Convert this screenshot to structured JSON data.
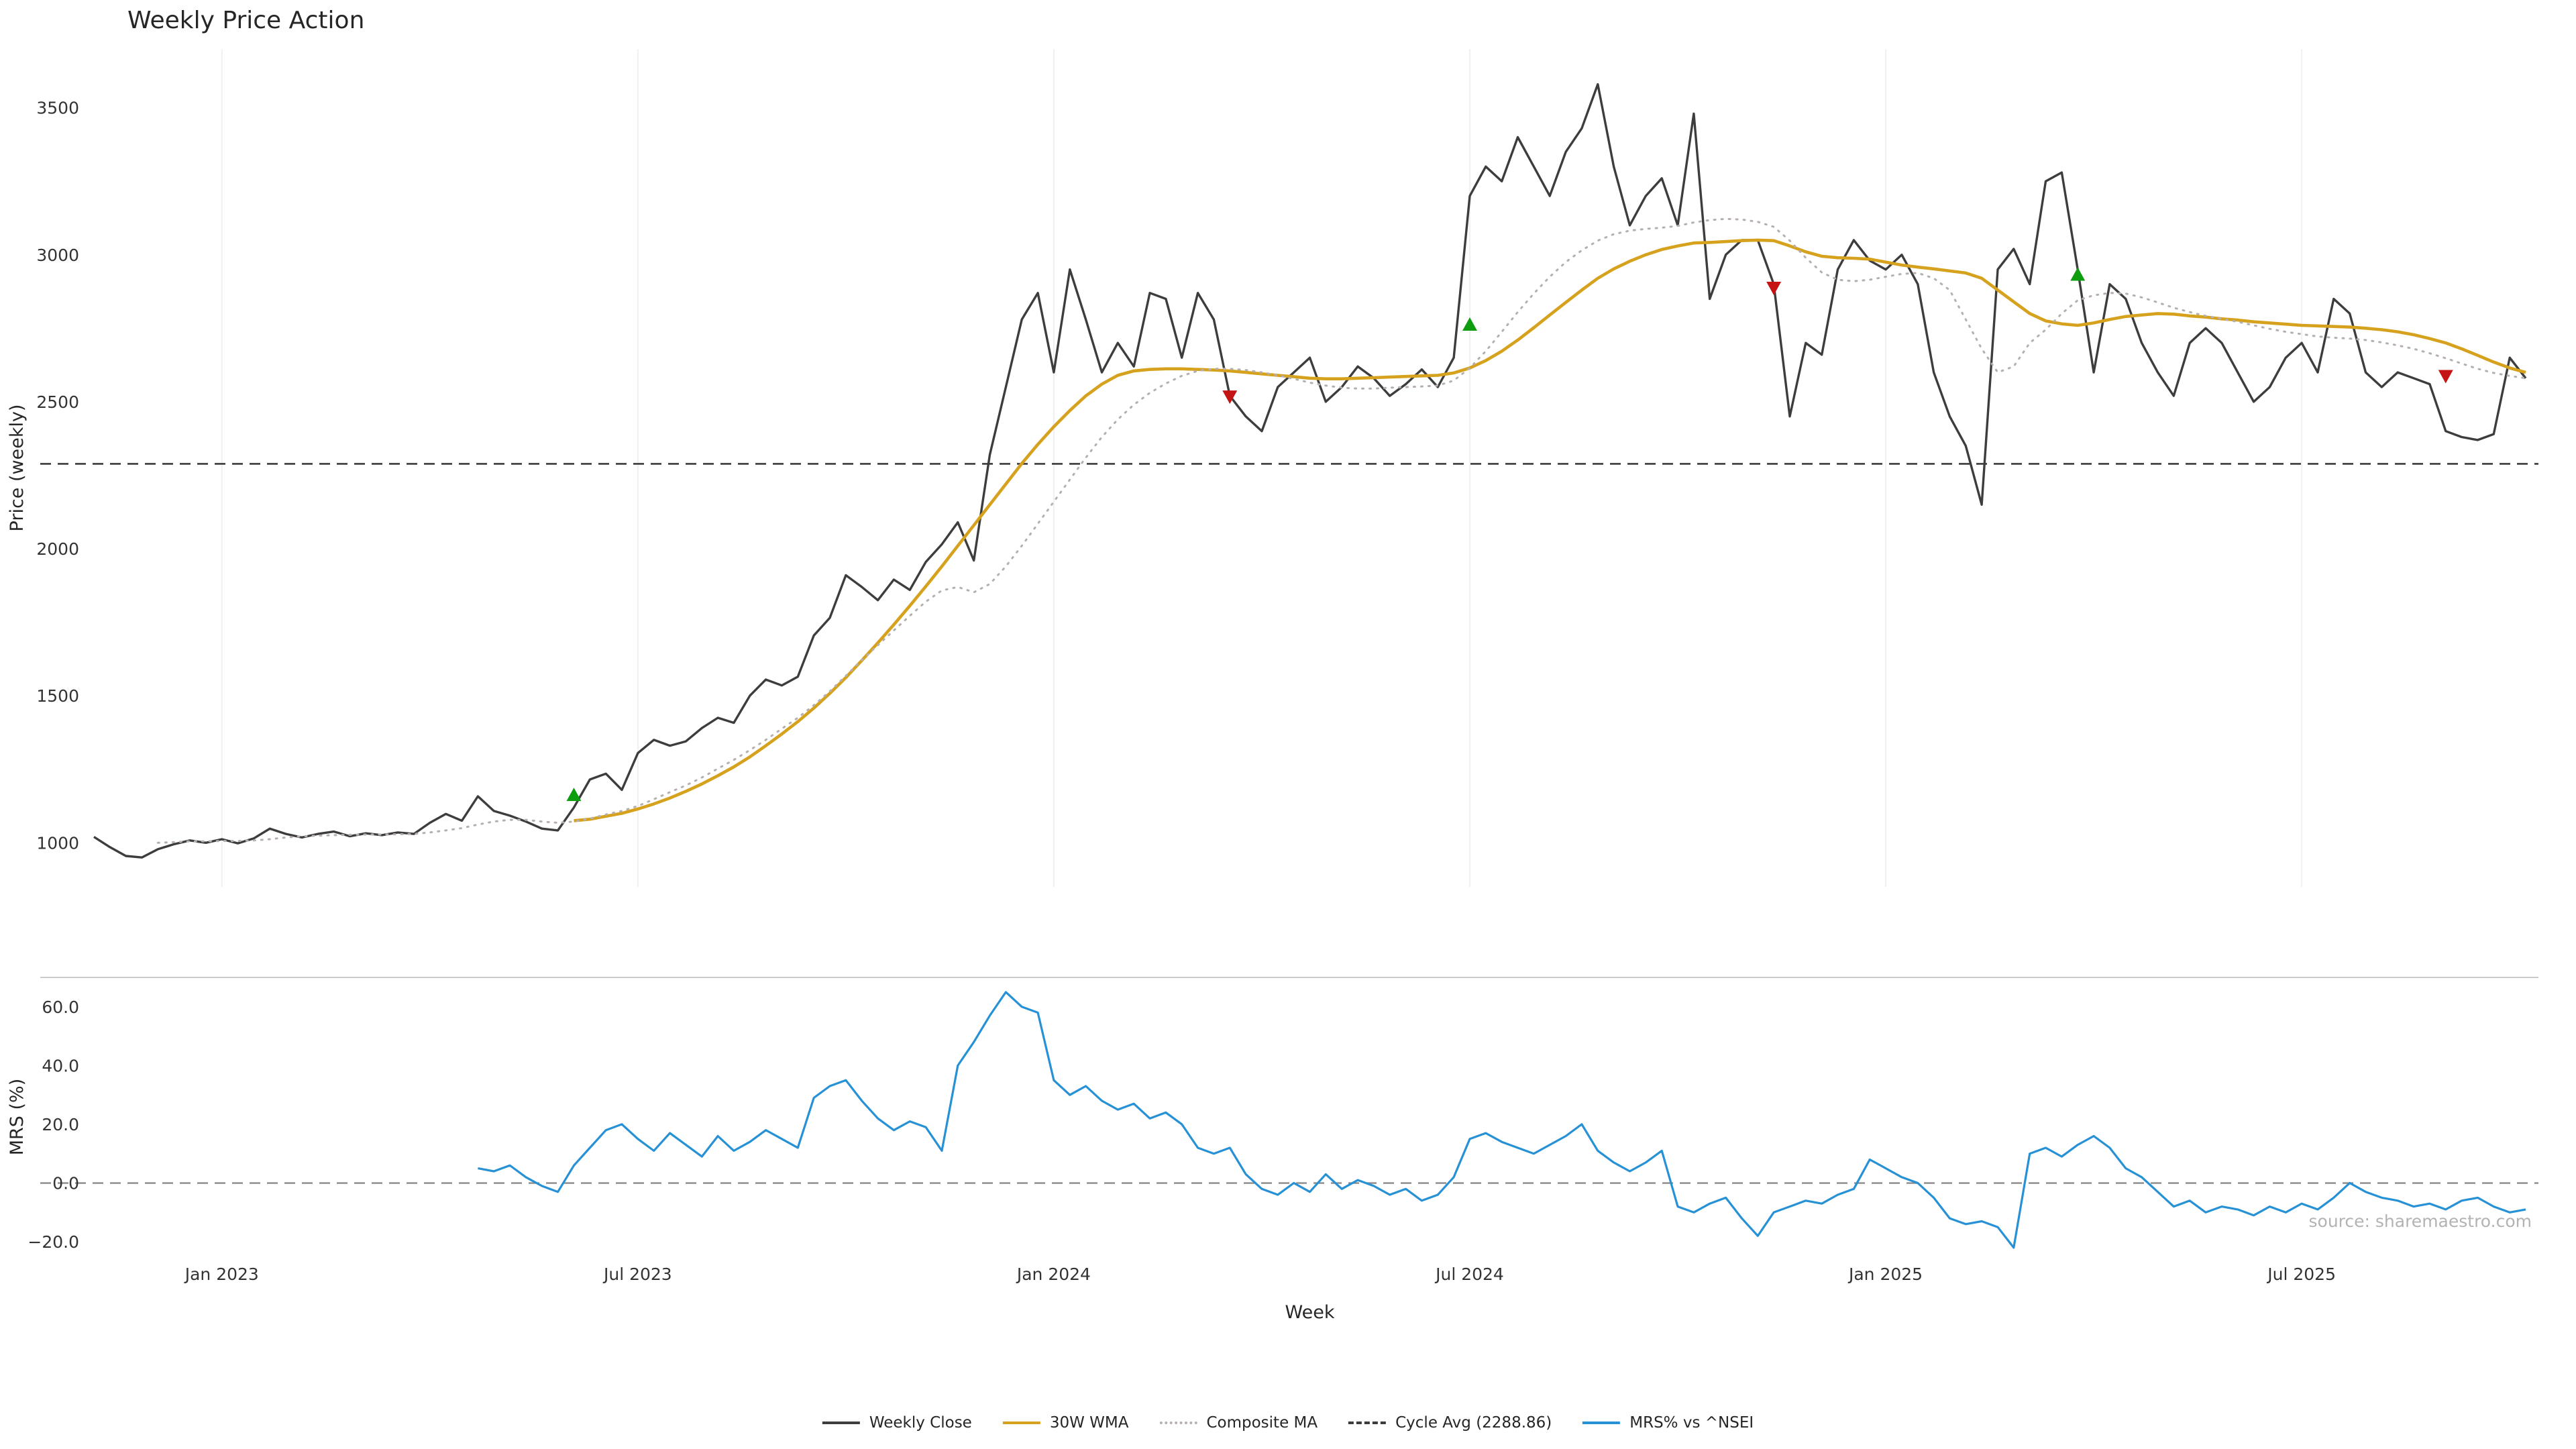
{
  "title": "Weekly Price Action",
  "watermark": "source: sharemaestro.com",
  "legend": [
    {
      "label": "Weekly Close",
      "color": "#3d3d3d",
      "style": "solid"
    },
    {
      "label": "30W WMA",
      "color": "#d6a21e",
      "style": "solid"
    },
    {
      "label": "Composite MA",
      "color": "#b5b0ae",
      "style": "dotted"
    },
    {
      "label": "Cycle Avg (2288.86)",
      "color": "#3c3c3c",
      "style": "dashed"
    },
    {
      "label": "MRS% vs ^NSEI",
      "color": "#2791d6",
      "style": "solid"
    }
  ],
  "chart_data": {
    "type": "line",
    "x_unit": "weekly (Nov 2022 - Oct 2025)",
    "x_label": "Week",
    "n_weeks": 153,
    "x_ticks": [
      {
        "index": 8,
        "label": "Jan 2023"
      },
      {
        "index": 34,
        "label": "Jul 2023"
      },
      {
        "index": 60,
        "label": "Jan 2024"
      },
      {
        "index": 86,
        "label": "Jul 2024"
      },
      {
        "index": 112,
        "label": "Jan 2025"
      },
      {
        "index": 138,
        "label": "Jul 2025"
      }
    ],
    "panels": [
      {
        "name": "price",
        "ylabel": "Price (weekly)",
        "ylim": [
          850,
          3700
        ],
        "y_ticks": [
          {
            "value": 3500,
            "label": "3500"
          },
          {
            "value": 3000,
            "label": "3000"
          },
          {
            "value": 2500,
            "label": "2500"
          },
          {
            "value": 2000,
            "label": "2000"
          },
          {
            "value": 1500,
            "label": "1500"
          },
          {
            "value": 1000,
            "label": "1000"
          }
        ],
        "hlines": [
          {
            "name": "cycle-avg",
            "value": 2288.86,
            "color": "#3c3c3c",
            "style": "dashed",
            "lw": 2.6
          }
        ],
        "series": [
          {
            "name": "Weekly Close",
            "color": "#3d3d3d",
            "style": "solid",
            "lw": 3.4,
            "start": 0,
            "values": [
              1020,
              985,
              955,
              950,
              978,
              995,
              1008,
              1000,
              1012,
              998,
              1015,
              1048,
              1030,
              1018,
              1030,
              1038,
              1022,
              1032,
              1026,
              1035,
              1030,
              1068,
              1098,
              1075,
              1158,
              1108,
              1092,
              1072,
              1048,
              1042,
              1120,
              1215,
              1235,
              1180,
              1305,
              1350,
              1330,
              1345,
              1390,
              1425,
              1408,
              1500,
              1555,
              1535,
              1565,
              1705,
              1765,
              1910,
              1870,
              1825,
              1895,
              1860,
              1955,
              2015,
              2090,
              1960,
              2320,
              2550,
              2780,
              2870,
              2600,
              2950,
              2780,
              2600,
              2700,
              2620,
              2870,
              2850,
              2650,
              2870,
              2780,
              2520,
              2450,
              2400,
              2550,
              2600,
              2650,
              2500,
              2550,
              2620,
              2580,
              2520,
              2560,
              2610,
              2550,
              2650,
              3200,
              3300,
              3250,
              3400,
              3300,
              3200,
              3350,
              3430,
              3580,
              3300,
              3100,
              3200,
              3260,
              3100,
              3480,
              2850,
              3000,
              3050,
              3050,
              2900,
              2450,
              2700,
              2660,
              2950,
              3050,
              2980,
              2950,
              3000,
              2900,
              2600,
              2450,
              2350,
              2150,
              2950,
              3020,
              2900,
              3250,
              3280,
              2950,
              2600,
              2900,
              2850,
              2700,
              2600,
              2520,
              2700,
              2750,
              2700,
              2600,
              2500,
              2550,
              2650,
              2700,
              2600,
              2850,
              2800,
              2600,
              2550,
              2600,
              2580,
              2560,
              2400,
              2380,
              2370,
              2390,
              2650,
              2580
            ]
          },
          {
            "name": "30W WMA",
            "color": "#d6a21e",
            "style": "solid",
            "lw": 4.6,
            "start": 30,
            "values": [
              1075,
              1080,
              1090,
              1100,
              1115,
              1132,
              1152,
              1175,
              1200,
              1228,
              1258,
              1292,
              1330,
              1370,
              1412,
              1458,
              1508,
              1562,
              1620,
              1680,
              1742,
              1806,
              1872,
              1940,
              2010,
              2080,
              2150,
              2220,
              2290,
              2355,
              2415,
              2470,
              2520,
              2560,
              2590,
              2605,
              2610,
              2612,
              2612,
              2610,
              2608,
              2605,
              2600,
              2595,
              2590,
              2585,
              2580,
              2578,
              2578,
              2580,
              2582,
              2584,
              2586,
              2588,
              2590,
              2598,
              2615,
              2640,
              2672,
              2710,
              2752,
              2795,
              2838,
              2880,
              2920,
              2952,
              2978,
              3000,
              3018,
              3030,
              3040,
              3042,
              3045,
              3048,
              3050,
              3048,
              3030,
              3010,
              2995,
              2990,
              2988,
              2985,
              2975,
              2965,
              2958,
              2952,
              2945,
              2938,
              2920,
              2880,
              2840,
              2800,
              2775,
              2765,
              2760,
              2768,
              2780,
              2790,
              2795,
              2800,
              2798,
              2792,
              2788,
              2782,
              2778,
              2772,
              2768,
              2764,
              2760,
              2758,
              2756,
              2754,
              2750,
              2745,
              2738,
              2728,
              2715,
              2700,
              2680,
              2658,
              2635,
              2615,
              2600
            ]
          },
          {
            "name": "Composite MA",
            "color": "#b5b0ae",
            "style": "dotted",
            "lw": 3.0,
            "start": 4,
            "values": [
              1000,
              1002,
              1005,
              1005,
              1006,
              1006,
              1008,
              1012,
              1018,
              1022,
              1024,
              1026,
              1027,
              1028,
              1028,
              1029,
              1030,
              1035,
              1042,
              1050,
              1062,
              1072,
              1078,
              1078,
              1072,
              1068,
              1072,
              1082,
              1096,
              1108,
              1125,
              1148,
              1172,
              1195,
              1222,
              1252,
              1282,
              1315,
              1350,
              1388,
              1425,
              1468,
              1515,
              1568,
              1622,
              1672,
              1722,
              1772,
              1820,
              1858,
              1870,
              1852,
              1880,
              1940,
              2010,
              2085,
              2160,
              2235,
              2310,
              2380,
              2440,
              2490,
              2530,
              2562,
              2588,
              2605,
              2612,
              2612,
              2608,
              2600,
              2590,
              2578,
              2565,
              2555,
              2548,
              2545,
              2545,
              2548,
              2550,
              2552,
              2555,
              2572,
              2615,
              2672,
              2738,
              2805,
              2868,
              2925,
              2975,
              3015,
              3048,
              3070,
              3082,
              3088,
              3092,
              3098,
              3110,
              3118,
              3122,
              3120,
              3112,
              3095,
              3048,
              2990,
              2940,
              2915,
              2910,
              2915,
              2925,
              2935,
              2938,
              2920,
              2880,
              2780,
              2680,
              2600,
              2620,
              2700,
              2745,
              2800,
              2845,
              2862,
              2870,
              2868,
              2855,
              2838,
              2820,
              2805,
              2792,
              2782,
              2772,
              2760,
              2748,
              2738,
              2730,
              2722,
              2718,
              2715,
              2710,
              2702,
              2692,
              2680,
              2665,
              2648,
              2630,
              2612,
              2598,
              2588,
              2580
            ]
          }
        ],
        "markers": [
          {
            "name": "buy-signal",
            "shape": "triangle-up",
            "color": "#0f9d10",
            "points": [
              {
                "week": 30,
                "price": 1160
              },
              {
                "week": 86,
                "price": 2760
              },
              {
                "week": 124,
                "price": 2930
              }
            ]
          },
          {
            "name": "sell-signal",
            "shape": "triangle-down",
            "color": "#c51414",
            "points": [
              {
                "week": 71,
                "price": 2520
              },
              {
                "week": 105,
                "price": 2890
              },
              {
                "week": 147,
                "price": 2590
              }
            ]
          }
        ]
      },
      {
        "name": "mrs",
        "ylabel": "MRS (%)",
        "ylim": [
          -25,
          70
        ],
        "y_ticks": [
          {
            "value": 60,
            "label": "60.0"
          },
          {
            "value": 40,
            "label": "40.0"
          },
          {
            "value": 20,
            "label": "20.0"
          },
          {
            "value": 0,
            "label": "0.0"
          },
          {
            "value": -20,
            "label": "−20.0"
          }
        ],
        "hlines": [
          {
            "name": "zero-line",
            "value": 0,
            "color": "#8a8a8a",
            "style": "dashed",
            "lw": 2.4
          }
        ],
        "series": [
          {
            "name": "MRS% vs ^NSEI",
            "color": "#2791d6",
            "style": "solid",
            "lw": 3.2,
            "start": 24,
            "values": [
              5,
              4,
              6,
              2,
              -1,
              -3,
              6,
              12,
              18,
              20,
              15,
              11,
              17,
              13,
              9,
              16,
              11,
              14,
              18,
              15,
              12,
              29,
              33,
              35,
              28,
              22,
              18,
              21,
              19,
              11,
              40,
              48,
              57,
              65,
              60,
              58,
              35,
              30,
              33,
              28,
              25,
              27,
              22,
              24,
              20,
              12,
              10,
              12,
              3,
              -2,
              -4,
              0,
              -3,
              3,
              -2,
              1,
              -1,
              -4,
              -2,
              -6,
              -4,
              2,
              15,
              17,
              14,
              12,
              10,
              13,
              16,
              20,
              11,
              7,
              4,
              7,
              11,
              -8,
              -10,
              -7,
              -5,
              -12,
              -18,
              -10,
              -8,
              -6,
              -7,
              -4,
              -2,
              8,
              5,
              2,
              0,
              -5,
              -12,
              -14,
              -13,
              -15,
              -22,
              10,
              12,
              9,
              13,
              16,
              12,
              5,
              2,
              -3,
              -8,
              -6,
              -10,
              -8,
              -9,
              -11,
              -8,
              -10,
              -7,
              -9,
              -5,
              0,
              -3,
              -5,
              -6,
              -8,
              -7,
              -9,
              -6,
              -5,
              -8,
              -10,
              -9
            ]
          }
        ],
        "markers": []
      }
    ]
  }
}
